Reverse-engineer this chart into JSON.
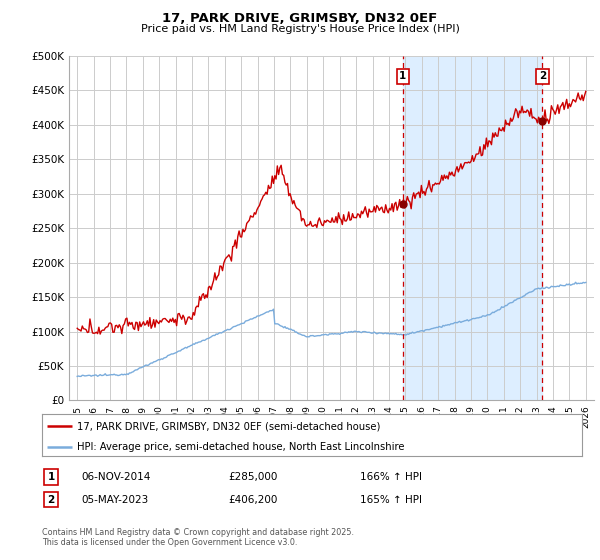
{
  "title": "17, PARK DRIVE, GRIMSBY, DN32 0EF",
  "subtitle": "Price paid vs. HM Land Registry's House Price Index (HPI)",
  "ylabel_ticks": [
    "£0",
    "£50K",
    "£100K",
    "£150K",
    "£200K",
    "£250K",
    "£300K",
    "£350K",
    "£400K",
    "£450K",
    "£500K"
  ],
  "ytick_values": [
    0,
    50000,
    100000,
    150000,
    200000,
    250000,
    300000,
    350000,
    400000,
    450000,
    500000
  ],
  "ylim": [
    0,
    500000
  ],
  "xlim_start": 1994.5,
  "xlim_end": 2026.5,
  "sale1_x": 2014.85,
  "sale1_y": 285000,
  "sale2_x": 2023.35,
  "sale2_y": 406200,
  "red_line_color": "#cc0000",
  "blue_line_color": "#7aacdc",
  "shade_color": "#ddeeff",
  "grid_color": "#cccccc",
  "bg_color": "#ffffff",
  "legend_line1": "17, PARK DRIVE, GRIMSBY, DN32 0EF (semi-detached house)",
  "legend_line2": "HPI: Average price, semi-detached house, North East Lincolnshire",
  "annotation1_date": "06-NOV-2014",
  "annotation1_price": "£285,000",
  "annotation1_hpi": "166% ↑ HPI",
  "annotation2_date": "05-MAY-2023",
  "annotation2_price": "£406,200",
  "annotation2_hpi": "165% ↑ HPI",
  "footnote": "Contains HM Land Registry data © Crown copyright and database right 2025.\nThis data is licensed under the Open Government Licence v3.0.",
  "xtick_years": [
    1995,
    1996,
    1997,
    1998,
    1999,
    2000,
    2001,
    2002,
    2003,
    2004,
    2005,
    2006,
    2007,
    2008,
    2009,
    2010,
    2011,
    2012,
    2013,
    2014,
    2015,
    2016,
    2017,
    2018,
    2019,
    2020,
    2021,
    2022,
    2023,
    2024,
    2025,
    2026
  ]
}
